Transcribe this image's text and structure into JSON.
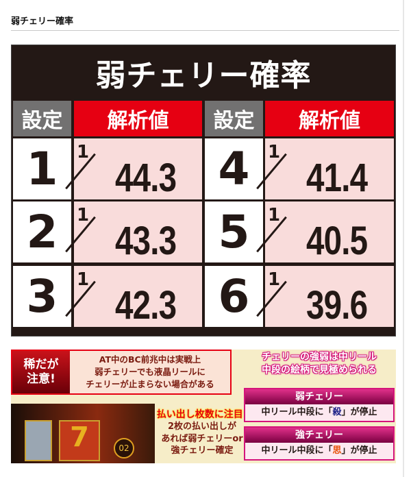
{
  "section_title": "弱チェリー確率",
  "panel": {
    "title": "弱チェリー確率",
    "headers": {
      "setting": "設定",
      "value": "解析値"
    },
    "numerator": "1",
    "rows": [
      {
        "setting": "1",
        "value": "44.3"
      },
      {
        "setting": "2",
        "value": "43.3"
      },
      {
        "setting": "3",
        "value": "42.3"
      },
      {
        "setting": "4",
        "value": "41.4"
      },
      {
        "setting": "5",
        "value": "40.5"
      },
      {
        "setting": "6",
        "value": "39.6"
      }
    ]
  },
  "banner": {
    "warn_label_1": "稀だが",
    "warn_label_2": "注意!",
    "warn_lines": [
      "AT中のBC前兆中は実戦上",
      "弱チェリーでも液晶リールに",
      "チェリーが止まらない場合がある"
    ],
    "reel_badge": "02",
    "pay_title": "払い出し枚数に注目!",
    "pay_lines": [
      "2枚の払い出しが",
      "あれば弱チェリーor",
      "強チェリー確定"
    ],
    "cherry_head": [
      "チェリーの強弱は中リール",
      "中段の絵柄で見極められる"
    ],
    "weak": {
      "title": "弱チェリー",
      "pre": "中リール中段に「",
      "kanji": "殺",
      "post": "」が停止"
    },
    "strong": {
      "title": "強チェリー",
      "pre": "中リール中段に「",
      "kanji": "思",
      "post": "」が停止"
    }
  },
  "colors": {
    "header_red": "#e60012",
    "header_gray": "#727171",
    "value_bg": "#f9dcdb",
    "panel_bg": "#231815",
    "accent_pink": "#d4147a"
  }
}
